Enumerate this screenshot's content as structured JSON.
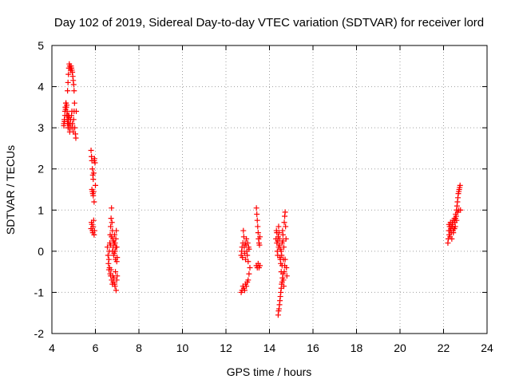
{
  "chart_data": {
    "type": "scatter",
    "title": "Day 102 of 2019, Sidereal Day-to-day VTEC variation (SDTVAR) for receiver lord",
    "xlabel": "GPS time / hours",
    "ylabel": "SDTVAR / TECUs",
    "xlim": [
      4,
      24
    ],
    "ylim": [
      -2,
      5
    ],
    "xticks": [
      4,
      6,
      8,
      10,
      12,
      14,
      16,
      18,
      20,
      22,
      24
    ],
    "yticks": [
      -2,
      -1,
      0,
      1,
      2,
      3,
      4,
      5
    ],
    "grid": true,
    "marker": "+",
    "color": "#ff0000",
    "series": [
      {
        "name": "SDTVAR",
        "segments": [
          {
            "x": [
              4.55,
              4.57,
              4.6,
              4.62,
              4.64,
              4.66,
              4.68,
              4.7,
              4.72,
              4.74,
              4.76,
              4.78,
              4.8,
              4.82,
              4.84,
              4.86,
              4.88,
              4.9,
              4.92,
              4.94,
              4.96,
              4.98,
              5.0,
              5.02,
              5.05,
              5.08,
              5.1,
              5.12
            ],
            "y": [
              3.1,
              3.2,
              3.4,
              3.5,
              3.6,
              3.5,
              3.3,
              3.2,
              3.1,
              3.0,
              3.1,
              3.3,
              3.0,
              2.9,
              3.1,
              3.2,
              3.0,
              3.3,
              3.4,
              3.1,
              3.0,
              2.9,
              3.2,
              3.4,
              3.0,
              2.85,
              2.75,
              3.4
            ]
          },
          {
            "x": [
              4.55,
              4.58,
              4.6,
              4.63,
              4.65,
              4.68,
              4.7,
              4.73,
              4.75,
              4.78,
              4.8
            ],
            "y": [
              3.05,
              3.15,
              3.3,
              3.45,
              3.6,
              3.55,
              3.4,
              3.3,
              3.2,
              3.1,
              3.25
            ]
          },
          {
            "x": [
              4.72,
              4.74,
              4.76,
              4.78,
              4.8,
              4.82,
              4.84,
              4.86,
              4.88,
              4.9,
              4.92,
              4.94,
              4.96,
              4.98,
              5.0,
              5.02,
              5.04
            ],
            "y": [
              3.9,
              4.1,
              4.3,
              4.45,
              4.55,
              4.5,
              4.45,
              4.4,
              4.5,
              4.45,
              4.4,
              4.35,
              4.25,
              4.15,
              4.05,
              3.9,
              3.6
            ]
          },
          {
            "x": [
              5.8,
              5.82,
              5.84,
              5.86,
              5.88,
              5.9,
              5.92,
              5.94,
              5.96,
              5.98,
              6.0
            ],
            "y": [
              2.45,
              2.3,
              2.2,
              2.0,
              1.85,
              1.75,
              1.9,
              2.2,
              2.25,
              2.15,
              1.6
            ]
          },
          {
            "x": [
              5.84,
              5.86,
              5.88,
              5.9,
              5.92,
              5.94
            ],
            "y": [
              1.5,
              1.45,
              1.4,
              1.35,
              1.45,
              1.2
            ]
          },
          {
            "x": [
              5.8,
              5.82,
              5.84,
              5.86,
              5.88,
              5.9,
              5.92,
              5.94,
              5.96
            ],
            "y": [
              0.55,
              0.7,
              0.65,
              0.5,
              0.45,
              0.6,
              0.75,
              0.4,
              0.5
            ]
          },
          {
            "x": [
              6.55,
              6.58,
              6.6,
              6.62,
              6.64,
              6.66,
              6.68,
              6.7,
              6.72,
              6.74,
              6.76,
              6.78,
              6.8,
              6.82,
              6.84,
              6.86,
              6.88,
              6.9,
              6.92,
              6.94,
              6.96,
              6.98,
              7.0
            ],
            "y": [
              0.1,
              -0.1,
              -0.3,
              -0.45,
              0.0,
              0.2,
              0.4,
              0.6,
              0.8,
              1.05,
              0.7,
              0.5,
              0.3,
              0.1,
              -0.1,
              0.2,
              0.4,
              0.0,
              -0.2,
              0.3,
              0.5,
              0.1,
              -0.15
            ]
          },
          {
            "x": [
              6.62,
              6.65,
              6.68,
              6.7,
              6.72,
              6.75,
              6.78,
              6.8,
              6.82,
              6.85,
              6.88,
              6.9,
              6.92,
              6.95,
              6.98,
              7.0
            ],
            "y": [
              -0.2,
              -0.4,
              -0.55,
              -0.6,
              -0.45,
              -0.7,
              -0.8,
              -0.6,
              -0.75,
              -0.65,
              -0.8,
              -0.85,
              -0.5,
              -0.95,
              -0.7,
              -0.6
            ]
          },
          {
            "x": [
              6.7,
              6.74,
              6.78,
              6.82,
              6.86,
              6.9,
              6.94,
              6.98
            ],
            "y": [
              0.15,
              0.35,
              0.0,
              0.25,
              -0.05,
              0.2,
              0.1,
              -0.25
            ]
          },
          {
            "x": [
              12.7,
              12.72,
              12.74,
              12.76,
              12.78,
              12.8,
              12.82,
              12.84,
              12.86,
              12.88,
              12.9,
              12.92,
              12.94,
              12.96,
              12.98,
              13.0,
              13.02,
              13.04,
              13.06
            ],
            "y": [
              -0.1,
              0.0,
              0.1,
              -0.15,
              0.2,
              0.5,
              0.35,
              0.1,
              -0.05,
              0.2,
              -0.2,
              0.15,
              0.3,
              0.0,
              -0.1,
              0.2,
              -0.25,
              0.1,
              0.05
            ]
          },
          {
            "x": [
              12.7,
              12.74,
              12.78,
              12.82,
              12.86,
              12.9,
              12.94,
              12.98,
              13.02,
              13.06,
              13.1
            ],
            "y": [
              -1.0,
              -0.95,
              -0.85,
              -0.9,
              -0.95,
              -0.8,
              -0.85,
              -0.75,
              -0.7,
              -0.55,
              -0.4
            ]
          },
          {
            "x": [
              13.4,
              13.42,
              13.44,
              13.46,
              13.48,
              13.5,
              13.52,
              13.54,
              13.56
            ],
            "y": [
              1.05,
              0.9,
              0.75,
              0.6,
              0.45,
              0.3,
              0.2,
              0.15,
              0.35
            ]
          },
          {
            "x": [
              13.4,
              13.44,
              13.48,
              13.52,
              13.56
            ],
            "y": [
              -0.35,
              -0.4,
              -0.3,
              -0.4,
              -0.35
            ]
          },
          {
            "x": [
              14.3,
              14.32,
              14.34,
              14.36,
              14.38,
              14.4,
              14.42,
              14.44,
              14.46,
              14.48,
              14.5,
              14.52,
              14.54,
              14.56,
              14.58,
              14.6,
              14.62,
              14.64,
              14.66,
              14.68,
              14.7,
              14.72,
              14.74,
              14.76,
              14.78,
              14.8
            ],
            "y": [
              0.3,
              0.5,
              0.2,
              0.0,
              -0.1,
              0.35,
              0.6,
              0.45,
              0.15,
              -0.15,
              0.05,
              -0.3,
              -0.5,
              -0.1,
              0.2,
              0.5,
              0.4,
              -0.2,
              0.1,
              0.7,
              0.85,
              0.95,
              0.6,
              0.3,
              -0.4,
              -0.6
            ]
          },
          {
            "x": [
              14.4,
              14.42,
              14.44,
              14.46,
              14.48,
              14.5,
              14.52,
              14.54,
              14.56,
              14.58,
              14.6,
              14.62,
              14.64,
              14.66,
              14.68,
              14.7,
              14.72
            ],
            "y": [
              -1.55,
              -1.45,
              -1.4,
              -1.3,
              -1.2,
              -1.1,
              -1.0,
              -0.9,
              -0.8,
              -0.75,
              -0.65,
              -0.55,
              -0.7,
              -0.85,
              -0.5,
              -0.35,
              -0.2
            ]
          },
          {
            "x": [
              14.34,
              14.38,
              14.42,
              14.46,
              14.5,
              14.54,
              14.58,
              14.62
            ],
            "y": [
              0.45,
              0.25,
              0.1,
              0.3,
              -0.2,
              0.0,
              -0.35,
              0.25
            ]
          },
          {
            "x": [
              22.2,
              22.22,
              22.24,
              22.26,
              22.28,
              22.3,
              22.32,
              22.34,
              22.36,
              22.38,
              22.4,
              22.42,
              22.44,
              22.46,
              22.48,
              22.5,
              22.52,
              22.54,
              22.56,
              22.58,
              22.6,
              22.62,
              22.64,
              22.66,
              22.68,
              22.7,
              22.72,
              22.74,
              22.76,
              22.78
            ],
            "y": [
              0.2,
              0.3,
              0.5,
              0.4,
              0.6,
              0.35,
              0.7,
              0.55,
              0.45,
              0.3,
              0.6,
              0.65,
              0.5,
              0.75,
              0.55,
              0.8,
              0.7,
              0.6,
              0.9,
              0.85,
              1.0,
              1.1,
              1.2,
              1.3,
              1.4,
              1.45,
              1.5,
              1.55,
              1.6,
              1.0
            ]
          },
          {
            "x": [
              22.25,
              22.3,
              22.35,
              22.4,
              22.45,
              22.5,
              22.55,
              22.6,
              22.65,
              22.7
            ],
            "y": [
              0.65,
              0.5,
              0.6,
              0.7,
              0.45,
              0.55,
              0.8,
              0.75,
              0.95,
              1.0
            ]
          }
        ]
      }
    ]
  }
}
